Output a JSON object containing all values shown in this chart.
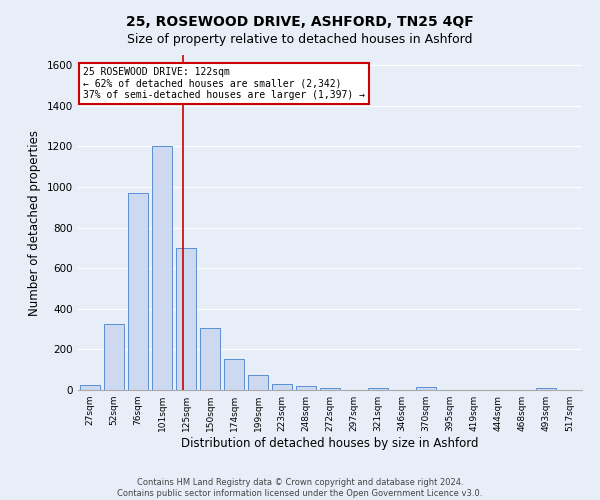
{
  "title": "25, ROSEWOOD DRIVE, ASHFORD, TN25 4QF",
  "subtitle": "Size of property relative to detached houses in Ashford",
  "xlabel": "Distribution of detached houses by size in Ashford",
  "ylabel": "Number of detached properties",
  "bar_labels": [
    "27sqm",
    "52sqm",
    "76sqm",
    "101sqm",
    "125sqm",
    "150sqm",
    "174sqm",
    "199sqm",
    "223sqm",
    "248sqm",
    "272sqm",
    "297sqm",
    "321sqm",
    "346sqm",
    "370sqm",
    "395sqm",
    "419sqm",
    "444sqm",
    "468sqm",
    "493sqm",
    "517sqm"
  ],
  "bar_values": [
    25,
    325,
    970,
    1200,
    700,
    305,
    155,
    75,
    30,
    20,
    12,
    0,
    10,
    0,
    15,
    0,
    0,
    0,
    0,
    12,
    0
  ],
  "bar_color": "#ccd9f0",
  "bar_edge_color": "#5b8fd4",
  "background_color": "#e8eef8",
  "grid_color": "#ffffff",
  "annotation_text": "25 ROSEWOOD DRIVE: 122sqm\n← 62% of detached houses are smaller (2,342)\n37% of semi-detached houses are larger (1,397) →",
  "annotation_box_color": "#ffffff",
  "annotation_box_edge": "#cc0000",
  "red_line_x": 3.88,
  "ylim": [
    0,
    1650
  ],
  "yticks": [
    0,
    200,
    400,
    600,
    800,
    1000,
    1200,
    1400,
    1600
  ],
  "footer": "Contains HM Land Registry data © Crown copyright and database right 2024.\nContains public sector information licensed under the Open Government Licence v3.0."
}
